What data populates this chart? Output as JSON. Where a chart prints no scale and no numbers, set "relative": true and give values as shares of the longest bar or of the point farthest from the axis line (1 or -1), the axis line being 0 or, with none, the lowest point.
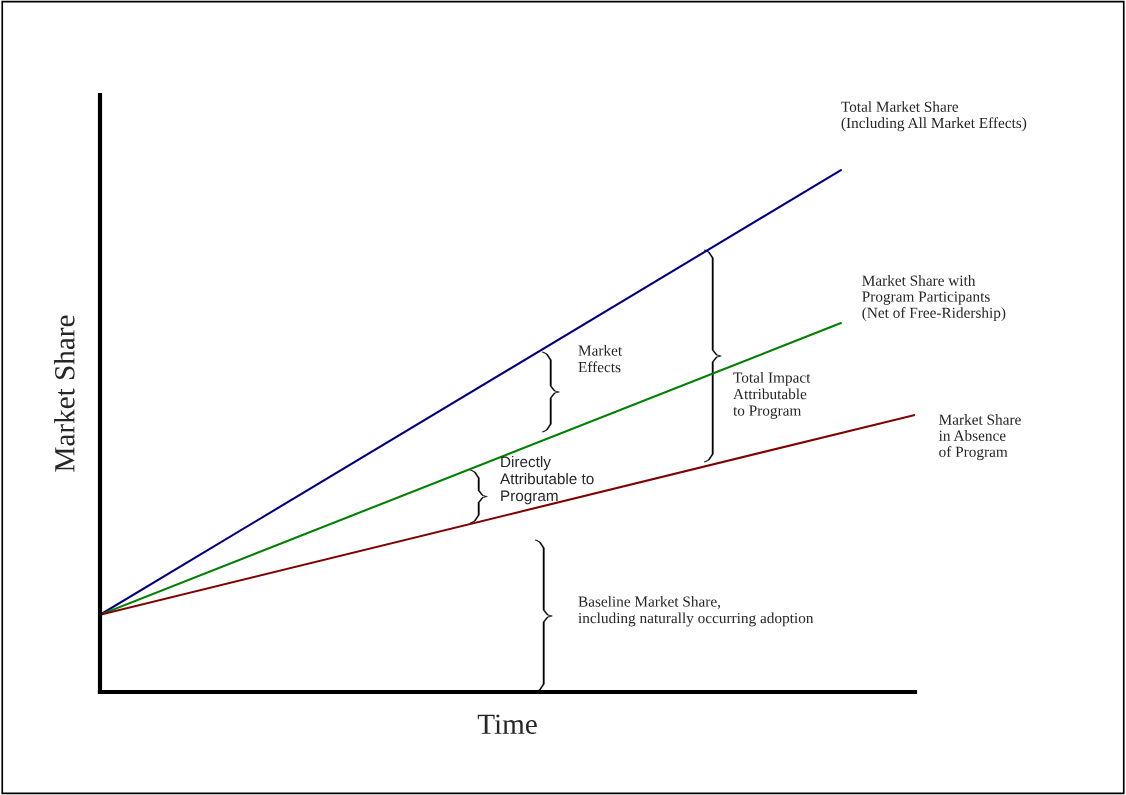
{
  "chart_data": {
    "type": "line",
    "relative": true,
    "xlabel": "Time",
    "ylabel": "Market Share",
    "categories": [
      null,
      null,
      null,
      null,
      null,
      null,
      null,
      null,
      null,
      null,
      null,
      null
    ],
    "series": [
      {
        "name": "Total Market Share\n(Including All Market Effects)",
        "color": "#000080",
        "values": [
          0.148,
          null,
          null,
          null,
          null,
          null,
          null,
          null,
          null,
          null,
          1.0,
          null
        ]
      },
      {
        "name": "Market Share with\nProgram Participants\n(Net of Free-Ridership)",
        "color": "#008000",
        "values": [
          0.148,
          null,
          null,
          null,
          null,
          null,
          null,
          null,
          null,
          null,
          0.707,
          null
        ]
      },
      {
        "name": "Market Share\nin Absence\nof Program",
        "color": "#800000",
        "values": [
          0.148,
          null,
          null,
          null,
          null,
          null,
          null,
          null,
          null,
          null,
          null,
          0.531
        ]
      }
    ],
    "annotations": [
      "Market\nEffects",
      "Total Impact\nAttributable\nto Program",
      "Directly\nAttributable to\nProgram",
      "Baseline Market Share,\nincluding naturally occurring adoption"
    ],
    "grid": false,
    "legend": false,
    "marker": "none",
    "line_style": "solid"
  }
}
